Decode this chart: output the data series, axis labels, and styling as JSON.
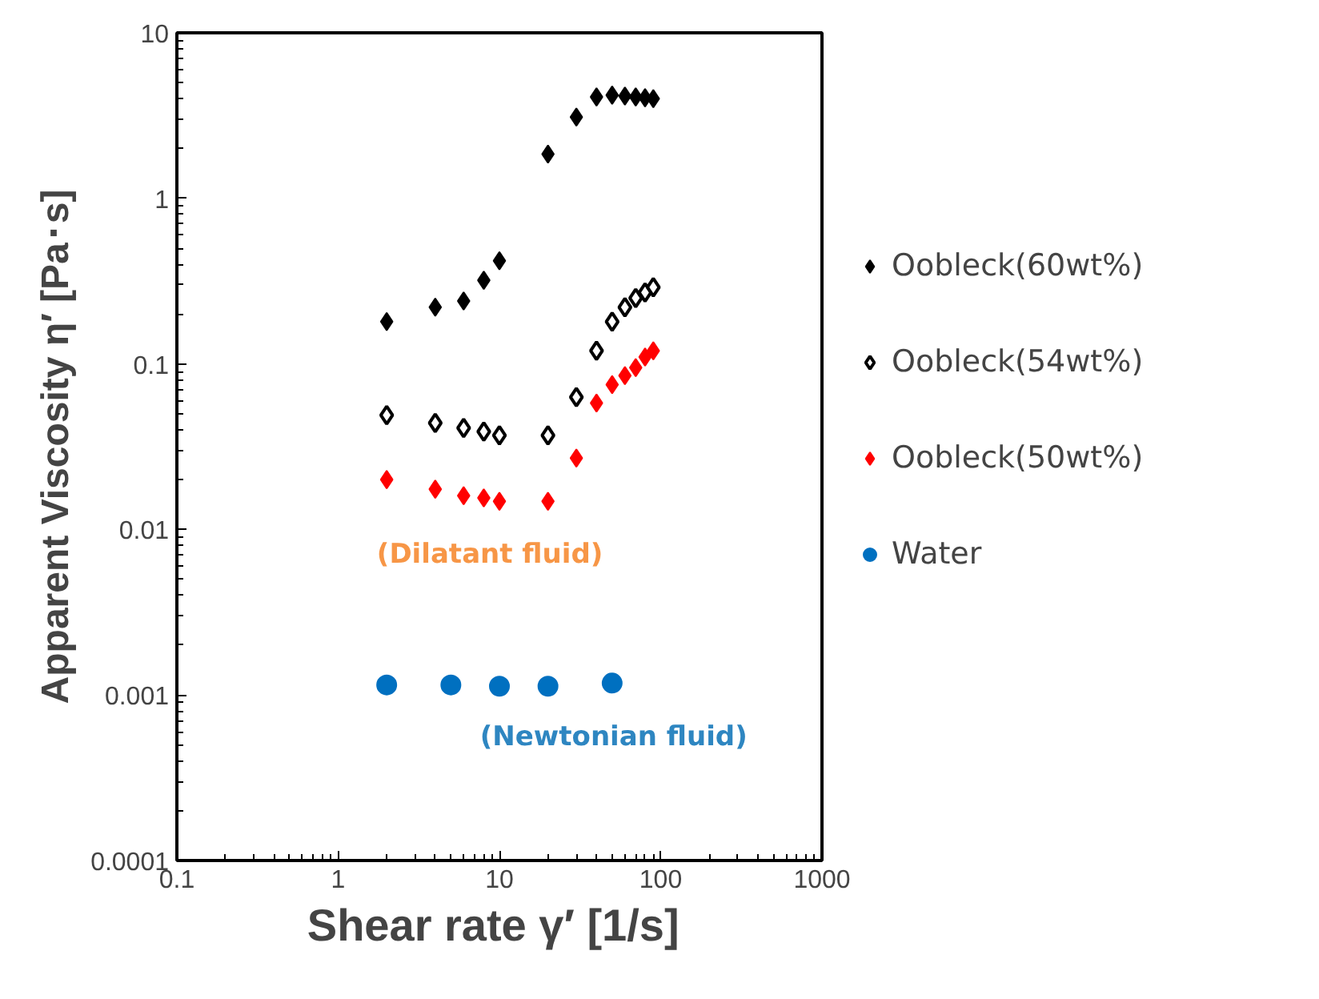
{
  "chart_data": {
    "type": "scatter",
    "xlabel": "Shear rate  γ′ [1/s]",
    "ylabel": "Apparent Viscosity η′ [Pa･s]",
    "log": "xy",
    "xlim": [
      0.1,
      1000
    ],
    "ylim": [
      0.0001,
      10
    ],
    "xticks": [
      0.1,
      1,
      10,
      100,
      1000
    ],
    "yticks": [
      0.0001,
      0.001,
      0.01,
      0.1,
      1,
      10
    ],
    "grid": false,
    "legend": "right",
    "marker": "diamond",
    "annotations": [
      "(Dilatant fluid)",
      "(Newtonian fluid)"
    ],
    "series": [
      {
        "name": "Oobleck(60wt%)",
        "color": "#000000",
        "x": [
          2,
          4,
          6,
          8,
          10,
          20,
          30,
          40,
          50,
          60,
          70,
          80,
          90
        ],
        "values": [
          0.18,
          0.22,
          0.24,
          0.32,
          0.42,
          1.85,
          3.1,
          4.1,
          4.2,
          4.15,
          4.1,
          4.05,
          4.0
        ]
      },
      {
        "name": "Oobleck(54wt%)",
        "color": "#000000",
        "marker": "diamond_open",
        "x": [
          2,
          4,
          6,
          8,
          10,
          20,
          30,
          40,
          50,
          60,
          70,
          80,
          90
        ],
        "values": [
          0.049,
          0.044,
          0.041,
          0.039,
          0.037,
          0.037,
          0.063,
          0.12,
          0.18,
          0.22,
          0.25,
          0.27,
          0.29
        ]
      },
      {
        "name": "Oobleck(50wt%)",
        "color": "#ff0000",
        "x": [
          2,
          4,
          6,
          8,
          10,
          20,
          30,
          40,
          50,
          60,
          70,
          80,
          90
        ],
        "values": [
          0.02,
          0.0175,
          0.016,
          0.0155,
          0.0148,
          0.0148,
          0.027,
          0.058,
          0.075,
          0.085,
          0.095,
          0.11,
          0.12
        ]
      },
      {
        "name": "Water",
        "color": "#0070c0",
        "marker": "circle",
        "x": [
          2,
          5,
          10,
          20,
          50
        ],
        "values": [
          0.00115,
          0.00115,
          0.00113,
          0.00113,
          0.00118
        ]
      }
    ]
  }
}
